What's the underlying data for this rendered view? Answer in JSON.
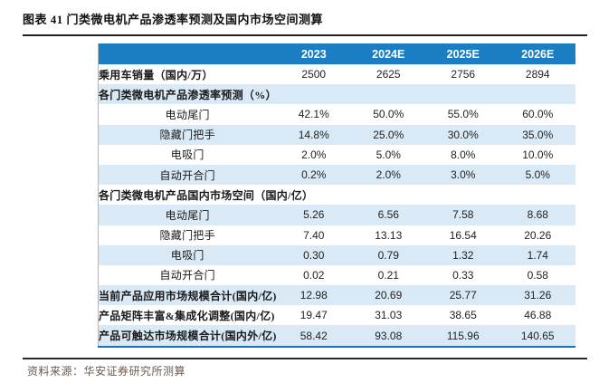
{
  "figure": {
    "title": "图表 41  门类微电机产品渗透率预测及国内市场空间测算",
    "source": "资料来源：华安证券研究所测算"
  },
  "table": {
    "columns": [
      "2023",
      "2024E",
      "2025E",
      "2026E"
    ],
    "rows": [
      {
        "label": "乘用车销量（国内/万）",
        "type": "metric",
        "values": [
          "2500",
          "2625",
          "2756",
          "2894"
        ]
      },
      {
        "label": "各门类微电机产品渗透率预测（%）",
        "type": "section",
        "values": [
          "",
          "",
          "",
          ""
        ]
      },
      {
        "label": "电动尾门",
        "type": "item",
        "values": [
          "42.1%",
          "50.0%",
          "55.0%",
          "60.0%"
        ]
      },
      {
        "label": "隐藏门把手",
        "type": "item",
        "values": [
          "14.8%",
          "25.0%",
          "30.0%",
          "35.0%"
        ]
      },
      {
        "label": "电吸门",
        "type": "item",
        "values": [
          "2.0%",
          "5.0%",
          "8.0%",
          "10.0%"
        ]
      },
      {
        "label": "自动开合门",
        "type": "item",
        "values": [
          "0.2%",
          "2.0%",
          "3.0%",
          "5.0%"
        ]
      },
      {
        "label": "各门类微电机产品国内市场空间（国内/亿）",
        "type": "section",
        "values": [
          "",
          "",
          "",
          ""
        ]
      },
      {
        "label": "电动尾门",
        "type": "item",
        "values": [
          "5.26",
          "6.56",
          "7.58",
          "8.68"
        ]
      },
      {
        "label": "隐藏门把手",
        "type": "item",
        "values": [
          "7.40",
          "13.13",
          "16.54",
          "20.26"
        ]
      },
      {
        "label": "电吸门",
        "type": "item",
        "values": [
          "0.30",
          "0.79",
          "1.32",
          "1.74"
        ]
      },
      {
        "label": "自动开合门",
        "type": "item",
        "values": [
          "0.02",
          "0.21",
          "0.33",
          "0.58"
        ]
      },
      {
        "label": "当前产品应用市场规模合计(国内/亿)",
        "type": "total",
        "values": [
          "12.98",
          "20.69",
          "25.77",
          "31.26"
        ]
      },
      {
        "label": "产品矩阵丰富&集成化调整(国内/亿)",
        "type": "total",
        "values": [
          "19.47",
          "31.03",
          "38.65",
          "46.88"
        ]
      },
      {
        "label": "产品可触达市场规模合计(国内外/亿)",
        "type": "total",
        "values": [
          "58.42",
          "93.08",
          "115.96",
          "140.65"
        ]
      }
    ]
  },
  "colors": {
    "header_bg": "#1b7ec2",
    "row_alt_bg": "#d9eaf6",
    "table_bottom_border": "#1a70c0",
    "source_text": "#6b5b4f"
  }
}
